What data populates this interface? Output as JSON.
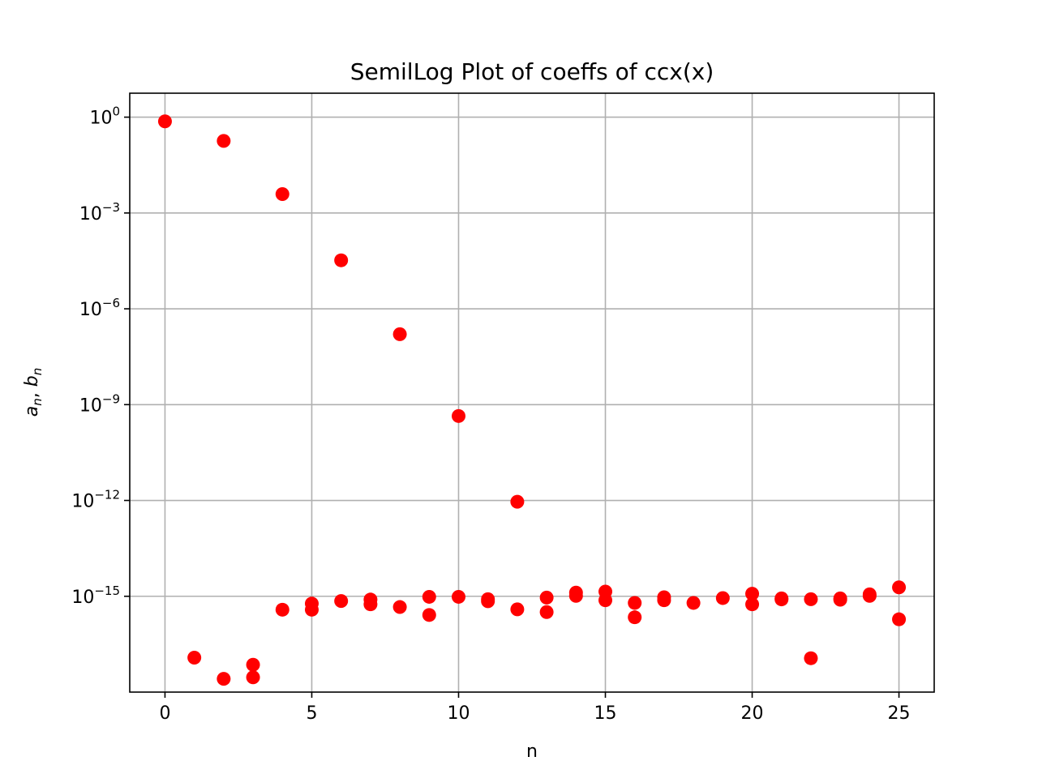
{
  "chart_data": {
    "type": "scatter",
    "title": "SemilLog Plot of coeffs of ccx(x)",
    "xlabel": "n",
    "ylabel_base": "a",
    "ylabel_base_sub": "n",
    "ylabel_sep": ", ",
    "ylabel_second": "b",
    "ylabel_second_sub": "n",
    "xlim": [
      -1.2,
      26.2
    ],
    "ylim_exponent": [
      -18,
      0.75
    ],
    "yscale": "log",
    "grid": true,
    "marker_color": "#ff0000",
    "x_ticks": [
      0,
      5,
      10,
      15,
      20,
      25
    ],
    "x_tick_labels": [
      "0",
      "5",
      "10",
      "15",
      "20",
      "25"
    ],
    "y_ticks": [
      {
        "base": "10",
        "exp": "0",
        "value": 1.0
      },
      {
        "base": "10",
        "exp": "−3",
        "value": 0.001
      },
      {
        "base": "10",
        "exp": "−6",
        "value": 1e-06
      },
      {
        "base": "10",
        "exp": "−9",
        "value": 1e-09
      },
      {
        "base": "10",
        "exp": "−12",
        "value": 1e-12
      },
      {
        "base": "10",
        "exp": "−15",
        "value": 1e-15
      }
    ],
    "series": [
      {
        "x": [
          0,
          2,
          4,
          6,
          8,
          10,
          12,
          1,
          2,
          3,
          3,
          4,
          5,
          5,
          6,
          7,
          7,
          8,
          9,
          9,
          10,
          11,
          11,
          12,
          13,
          13,
          14,
          14,
          15,
          15,
          16,
          16,
          17,
          17,
          18,
          19,
          20,
          20,
          21,
          21,
          22,
          22,
          23,
          23,
          24,
          24,
          25,
          25
        ],
        "y": [
          0.74,
          0.18,
          0.0039,
          3.3e-05,
          1.6e-07,
          4.4e-10,
          9.1e-13,
          1.2e-17,
          2.6e-18,
          7.2e-18,
          2.9e-18,
          3.8e-16,
          5.9e-16,
          3.8e-16,
          7.1e-16,
          7.9e-16,
          5.6e-16,
          4.6e-16,
          9.6e-16,
          2.6e-16,
          9.6e-16,
          8.1e-16,
          7e-16,
          3.9e-16,
          9.1e-16,
          3.2e-16,
          1.03e-15,
          1.3e-15,
          1.4e-15,
          7.5e-16,
          6.2e-16,
          2.2e-16,
          7.5e-16,
          9.3e-16,
          6.2e-16,
          8.8e-16,
          1.2e-15,
          5.6e-16,
          8e-16,
          8.6e-16,
          8.1e-16,
          1.15e-17,
          7.8e-16,
          8.6e-16,
          1.15e-15,
          1.03e-15,
          1.9e-15,
          1.9e-16
        ]
      }
    ]
  }
}
